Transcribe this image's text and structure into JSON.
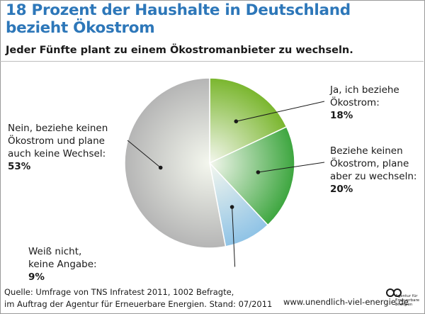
{
  "chart_data": {
    "type": "pie",
    "title": "18 Prozent der Haushalte in Deutschland bezieht Ökostrom",
    "title_lines": [
      "18 Prozent der Haushalte in Deutschland",
      "bezieht Ökostrom"
    ],
    "subtitle": "Jeder Fünfte plant zu einem Ökostromanbieter zu wechseln.",
    "slices": [
      {
        "label": "Ja, ich beziehe\nÖkostrom:",
        "value": 18,
        "value_label": "18%",
        "color": "#7ab62e"
      },
      {
        "label": "Beziehe keinen\nÖkostrom, plane\naber zu wechseln:",
        "value": 20,
        "value_label": "20%",
        "color": "#3da63f"
      },
      {
        "label": "Weiß nicht,\nkeine Angabe:",
        "value": 9,
        "value_label": "9%",
        "color": "#8fc3e6"
      },
      {
        "label": "Nein, beziehe keinen\nÖkostrom und plane\nauch keine Wechsel:",
        "value": 53,
        "value_label": "53%",
        "color": "#b5b5b5"
      }
    ]
  },
  "footer": {
    "source": "Quelle: Umfrage von TNS Infratest 2011, 1002 Befragte,\nim Auftrag der Agentur für Erneuerbare Energien. Stand: 07/2011",
    "url": "www.unendlich-viel-energie.de",
    "logo_text": "Agentur für\nErneuerbare\nEnergien"
  }
}
